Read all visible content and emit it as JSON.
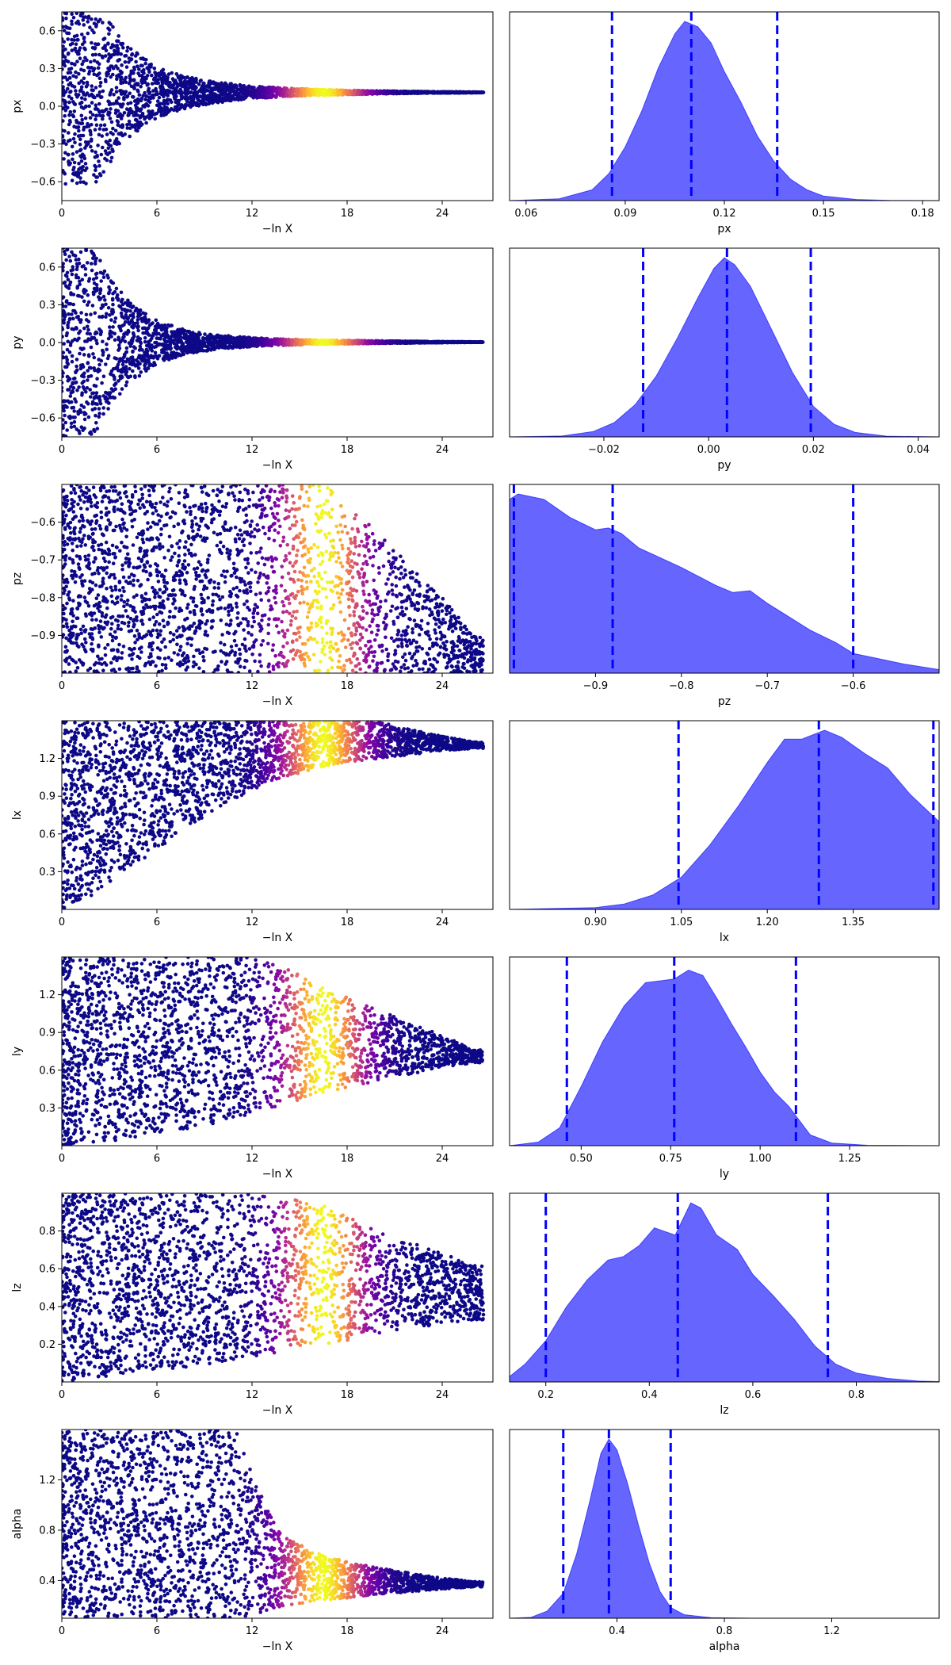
{
  "chart_data": [
    {
      "type": "scatter",
      "xlabel": "−ln X",
      "ylabel": "px",
      "xlim": [
        0,
        27.2
      ],
      "ylim": [
        -0.75,
        0.75
      ],
      "xticks": [
        0,
        6,
        12,
        18,
        24
      ],
      "xtick_labels": [
        "0",
        "6",
        "12",
        "18",
        "24"
      ],
      "yticks": [
        -0.6,
        -0.3,
        0.0,
        0.3,
        0.6
      ],
      "ytick_labels": [
        "−0.6",
        "−0.3",
        "0.0",
        "0.3",
        "0.6"
      ],
      "colormap": "plasma",
      "color_peak_x": 16.5,
      "center_y": 0.11,
      "envelope": {
        "x": [
          0,
          2,
          4,
          6,
          8,
          10,
          12,
          14,
          16,
          18,
          20,
          22,
          24,
          26
        ],
        "half_width": [
          0.75,
          0.75,
          0.38,
          0.2,
          0.12,
          0.08,
          0.05,
          0.035,
          0.025,
          0.018,
          0.012,
          0.008,
          0.005,
          0.003
        ]
      }
    },
    {
      "type": "area",
      "xlabel": "px",
      "xlim": [
        0.055,
        0.185
      ],
      "xticks": [
        0.06,
        0.09,
        0.12,
        0.15,
        0.18
      ],
      "xtick_labels": [
        "0.06",
        "0.09",
        "0.12",
        "0.15",
        "0.18"
      ],
      "fill_color": "#6666ff",
      "line_color": "#0000ff",
      "quantiles": [
        0.086,
        0.11,
        0.136
      ],
      "x": [
        0.055,
        0.07,
        0.08,
        0.085,
        0.09,
        0.095,
        0.1,
        0.105,
        0.108,
        0.112,
        0.116,
        0.12,
        0.125,
        0.13,
        0.135,
        0.14,
        0.145,
        0.15,
        0.16,
        0.17,
        0.185
      ],
      "y": [
        0,
        0.01,
        0.06,
        0.15,
        0.3,
        0.5,
        0.74,
        0.93,
        1.0,
        0.97,
        0.88,
        0.72,
        0.55,
        0.36,
        0.22,
        0.12,
        0.06,
        0.025,
        0.006,
        0.001,
        0
      ]
    },
    {
      "type": "scatter",
      "xlabel": "−ln X",
      "ylabel": "py",
      "xlim": [
        0,
        27.2
      ],
      "ylim": [
        -0.75,
        0.75
      ],
      "xticks": [
        0,
        6,
        12,
        18,
        24
      ],
      "xtick_labels": [
        "0",
        "6",
        "12",
        "18",
        "24"
      ],
      "yticks": [
        -0.6,
        -0.3,
        0.0,
        0.3,
        0.6
      ],
      "ytick_labels": [
        "−0.6",
        "−0.3",
        "0.0",
        "0.3",
        "0.6"
      ],
      "colormap": "plasma",
      "color_peak_x": 16.5,
      "center_y": 0.003,
      "envelope": {
        "x": [
          0,
          2,
          4,
          6,
          8,
          10,
          12,
          14,
          16,
          18,
          20,
          22,
          24,
          26
        ],
        "half_width": [
          0.75,
          0.75,
          0.35,
          0.17,
          0.09,
          0.055,
          0.035,
          0.025,
          0.018,
          0.014,
          0.01,
          0.007,
          0.004,
          0.002
        ]
      }
    },
    {
      "type": "area",
      "xlabel": "py",
      "xlim": [
        -0.038,
        0.044
      ],
      "xticks": [
        -0.02,
        0.0,
        0.02,
        0.04
      ],
      "xtick_labels": [
        "−0.02",
        "0.00",
        "0.02",
        "0.04"
      ],
      "fill_color": "#6666ff",
      "line_color": "#0000ff",
      "quantiles": [
        -0.0125,
        0.0035,
        0.0195
      ],
      "x": [
        -0.038,
        -0.028,
        -0.022,
        -0.018,
        -0.014,
        -0.01,
        -0.006,
        -0.002,
        0.001,
        0.003,
        0.005,
        0.008,
        0.012,
        0.016,
        0.02,
        0.024,
        0.028,
        0.034,
        0.044
      ],
      "y": [
        0,
        0.005,
        0.03,
        0.08,
        0.18,
        0.34,
        0.55,
        0.78,
        0.94,
        1.0,
        0.96,
        0.84,
        0.6,
        0.36,
        0.17,
        0.07,
        0.025,
        0.004,
        0
      ]
    },
    {
      "type": "scatter",
      "xlabel": "−ln X",
      "ylabel": "pz",
      "xlim": [
        0,
        27.2
      ],
      "ylim": [
        -1.0,
        -0.5
      ],
      "xticks": [
        0,
        6,
        12,
        18,
        24
      ],
      "xtick_labels": [
        "0",
        "6",
        "12",
        "18",
        "24"
      ],
      "yticks": [
        -0.9,
        -0.8,
        -0.7,
        -0.6
      ],
      "ytick_labels": [
        "−0.9",
        "−0.8",
        "−0.7",
        "−0.6"
      ],
      "colormap": "plasma",
      "color_peak_x": 16.5,
      "band": {
        "x": [
          0,
          8,
          12,
          14,
          16,
          17,
          18,
          19,
          20,
          21,
          22,
          23,
          24,
          25,
          26
        ],
        "y_top": [
          -0.5,
          -0.5,
          -0.5,
          -0.5,
          -0.5,
          -0.51,
          -0.55,
          -0.59,
          -0.63,
          -0.67,
          -0.72,
          -0.76,
          -0.8,
          -0.85,
          -0.9
        ]
      }
    },
    {
      "type": "area",
      "xlabel": "pz",
      "xlim": [
        -1.0,
        -0.5
      ],
      "xticks": [
        -0.9,
        -0.8,
        -0.7,
        -0.6
      ],
      "xtick_labels": [
        "−0.9",
        "−0.8",
        "−0.7",
        "−0.6"
      ],
      "fill_color": "#6666ff",
      "line_color": "#0000ff",
      "quantiles": [
        -0.995,
        -0.88,
        -0.6
      ],
      "x": [
        -1.0,
        -0.99,
        -0.96,
        -0.93,
        -0.9,
        -0.885,
        -0.87,
        -0.85,
        -0.8,
        -0.76,
        -0.74,
        -0.72,
        -0.7,
        -0.68,
        -0.65,
        -0.62,
        -0.6,
        -0.57,
        -0.54,
        -0.5
      ],
      "y": [
        0.97,
        1.0,
        0.97,
        0.87,
        0.8,
        0.81,
        0.78,
        0.7,
        0.59,
        0.49,
        0.45,
        0.46,
        0.39,
        0.33,
        0.24,
        0.17,
        0.11,
        0.08,
        0.05,
        0.02
      ]
    },
    {
      "type": "scatter",
      "xlabel": "−ln X",
      "ylabel": "lx",
      "xlim": [
        0,
        27.2
      ],
      "ylim": [
        0,
        1.5
      ],
      "xticks": [
        0,
        6,
        12,
        18,
        24
      ],
      "xtick_labels": [
        "0",
        "6",
        "12",
        "18",
        "24"
      ],
      "yticks": [
        0.3,
        0.6,
        0.9,
        1.2
      ],
      "ytick_labels": [
        "0.3",
        "0.6",
        "0.9",
        "1.2"
      ],
      "colormap": "plasma",
      "color_peak_x": 16.5,
      "band": {
        "x": [
          0,
          2,
          4,
          6,
          8,
          10,
          12,
          14,
          16,
          18,
          20,
          22,
          24,
          26
        ],
        "y_bottom": [
          0.0,
          0.12,
          0.3,
          0.48,
          0.66,
          0.82,
          0.95,
          1.05,
          1.12,
          1.17,
          1.2,
          1.23,
          1.26,
          1.28
        ],
        "y_top": [
          1.5,
          1.5,
          1.5,
          1.5,
          1.5,
          1.5,
          1.5,
          1.5,
          1.5,
          1.5,
          1.49,
          1.43,
          1.38,
          1.33
        ]
      }
    },
    {
      "type": "area",
      "xlabel": "lx",
      "xlim": [
        0.75,
        1.5
      ],
      "xticks": [
        0.9,
        1.05,
        1.2,
        1.35
      ],
      "xtick_labels": [
        "0.90",
        "1.05",
        "1.20",
        "1.35"
      ],
      "fill_color": "#6666ff",
      "line_color": "#0000ff",
      "quantiles": [
        1.045,
        1.29,
        1.49
      ],
      "x": [
        0.75,
        0.9,
        0.95,
        1.0,
        1.05,
        1.1,
        1.15,
        1.2,
        1.23,
        1.26,
        1.3,
        1.33,
        1.37,
        1.41,
        1.45,
        1.5
      ],
      "y": [
        0,
        0.01,
        0.03,
        0.08,
        0.18,
        0.36,
        0.58,
        0.82,
        0.95,
        0.95,
        1.0,
        0.96,
        0.87,
        0.79,
        0.64,
        0.49
      ]
    },
    {
      "type": "scatter",
      "xlabel": "−ln X",
      "ylabel": "ly",
      "xlim": [
        0,
        27.2
      ],
      "ylim": [
        0,
        1.5
      ],
      "xticks": [
        0,
        6,
        12,
        18,
        24
      ],
      "xtick_labels": [
        "0",
        "6",
        "12",
        "18",
        "24"
      ],
      "yticks": [
        0.3,
        0.6,
        0.9,
        1.2
      ],
      "ytick_labels": [
        "0.3",
        "0.6",
        "0.9",
        "1.2"
      ],
      "colormap": "plasma",
      "color_peak_x": 16.5,
      "band": {
        "x": [
          0,
          4,
          8,
          12,
          14,
          16,
          18,
          20,
          22,
          24,
          26
        ],
        "y_bottom": [
          0.0,
          0.05,
          0.12,
          0.25,
          0.33,
          0.4,
          0.46,
          0.52,
          0.57,
          0.62,
          0.66
        ],
        "y_top": [
          1.5,
          1.5,
          1.5,
          1.5,
          1.42,
          1.29,
          1.18,
          1.08,
          0.98,
          0.88,
          0.76
        ]
      }
    },
    {
      "type": "area",
      "xlabel": "ly",
      "xlim": [
        0.3,
        1.5
      ],
      "xticks": [
        0.5,
        0.75,
        1.0,
        1.25
      ],
      "xtick_labels": [
        "0.50",
        "0.75",
        "1.00",
        "1.25"
      ],
      "fill_color": "#6666ff",
      "line_color": "#0000ff",
      "quantiles": [
        0.46,
        0.76,
        1.1
      ],
      "x": [
        0.3,
        0.38,
        0.44,
        0.5,
        0.56,
        0.62,
        0.68,
        0.72,
        0.76,
        0.8,
        0.84,
        0.88,
        0.92,
        0.96,
        1.0,
        1.04,
        1.08,
        1.14,
        1.2,
        1.3,
        1.5
      ],
      "y": [
        0,
        0.02,
        0.1,
        0.33,
        0.58,
        0.78,
        0.91,
        0.92,
        0.93,
        0.98,
        0.95,
        0.82,
        0.68,
        0.55,
        0.41,
        0.3,
        0.22,
        0.06,
        0.015,
        0.002,
        0
      ]
    },
    {
      "type": "scatter",
      "xlabel": "−ln X",
      "ylabel": "lz",
      "xlim": [
        0,
        27.2
      ],
      "ylim": [
        0.0,
        1.0
      ],
      "xticks": [
        0,
        6,
        12,
        18,
        24
      ],
      "xtick_labels": [
        "0",
        "6",
        "12",
        "18",
        "24"
      ],
      "yticks": [
        0.2,
        0.4,
        0.6,
        0.8
      ],
      "ytick_labels": [
        "0.2",
        "0.4",
        "0.6",
        "0.8"
      ],
      "colormap": "plasma",
      "color_peak_x": 16.5,
      "band": {
        "x": [
          0,
          4,
          8,
          12,
          14,
          16,
          18,
          20,
          22,
          24,
          26
        ],
        "y_bottom": [
          0.0,
          0.04,
          0.08,
          0.13,
          0.16,
          0.19,
          0.22,
          0.25,
          0.28,
          0.3,
          0.33
        ],
        "y_top": [
          1.0,
          1.0,
          1.0,
          1.0,
          0.98,
          0.96,
          0.88,
          0.8,
          0.74,
          0.68,
          0.62
        ]
      }
    },
    {
      "type": "area",
      "xlabel": "lz",
      "xlim": [
        0.13,
        0.96
      ],
      "xticks": [
        0.2,
        0.4,
        0.6,
        0.8
      ],
      "xtick_labels": [
        "0.2",
        "0.4",
        "0.6",
        "0.8"
      ],
      "fill_color": "#6666ff",
      "line_color": "#0000ff",
      "quantiles": [
        0.2,
        0.455,
        0.745
      ],
      "x": [
        0.13,
        0.16,
        0.2,
        0.24,
        0.28,
        0.32,
        0.35,
        0.38,
        0.41,
        0.43,
        0.45,
        0.48,
        0.5,
        0.53,
        0.57,
        0.6,
        0.64,
        0.68,
        0.72,
        0.76,
        0.8,
        0.86,
        0.92,
        0.96
      ],
      "y": [
        0.03,
        0.1,
        0.23,
        0.42,
        0.57,
        0.68,
        0.7,
        0.76,
        0.86,
        0.84,
        0.82,
        1.0,
        0.97,
        0.82,
        0.74,
        0.6,
        0.48,
        0.35,
        0.2,
        0.1,
        0.05,
        0.02,
        0.005,
        0.002
      ]
    },
    {
      "type": "scatter",
      "xlabel": "−ln X",
      "ylabel": "alpha",
      "xlim": [
        0,
        27.2
      ],
      "ylim": [
        0.1,
        1.6
      ],
      "xticks": [
        0,
        6,
        12,
        18,
        24
      ],
      "xtick_labels": [
        "0",
        "6",
        "12",
        "18",
        "24"
      ],
      "yticks": [
        0.4,
        0.8,
        1.2
      ],
      "ytick_labels": [
        "0.4",
        "0.8",
        "1.2"
      ],
      "colormap": "plasma",
      "color_peak_x": 16.5,
      "band": {
        "x": [
          0,
          4,
          8,
          11,
          12,
          13,
          14,
          16,
          18,
          20,
          22,
          24,
          26
        ],
        "y_bottom": [
          0.1,
          0.1,
          0.1,
          0.1,
          0.12,
          0.16,
          0.19,
          0.23,
          0.26,
          0.29,
          0.31,
          0.33,
          0.35
        ],
        "y_top": [
          1.6,
          1.6,
          1.6,
          1.6,
          1.25,
          0.95,
          0.75,
          0.62,
          0.55,
          0.5,
          0.46,
          0.42,
          0.39
        ]
      }
    },
    {
      "type": "area",
      "xlabel": "alpha",
      "xlim": [
        0.0,
        1.6
      ],
      "xticks": [
        0.4,
        0.8,
        1.2
      ],
      "xtick_labels": [
        "0.4",
        "0.8",
        "1.2"
      ],
      "fill_color": "#6666ff",
      "line_color": "#0000ff",
      "quantiles": [
        0.2,
        0.37,
        0.6
      ],
      "x": [
        0.0,
        0.08,
        0.14,
        0.2,
        0.25,
        0.3,
        0.34,
        0.37,
        0.4,
        0.44,
        0.48,
        0.52,
        0.56,
        0.6,
        0.65,
        0.75,
        0.9,
        1.2,
        1.6
      ],
      "y": [
        0,
        0.005,
        0.04,
        0.14,
        0.36,
        0.66,
        0.92,
        1.0,
        0.94,
        0.75,
        0.52,
        0.31,
        0.15,
        0.06,
        0.02,
        0.003,
        0,
        0,
        0
      ]
    }
  ]
}
